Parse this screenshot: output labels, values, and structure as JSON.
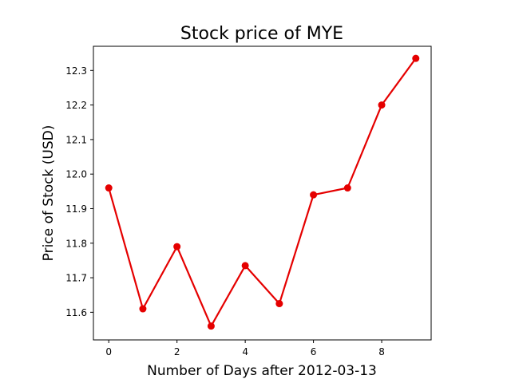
{
  "chart_data": {
    "type": "line",
    "title": "Stock price of MYE",
    "xlabel": "Number of Days after 2012-03-13",
    "ylabel": "Price of Stock (USD)",
    "xlim": [
      -0.45,
      9.45
    ],
    "ylim": [
      11.52,
      12.37
    ],
    "xticks": [
      0,
      2,
      4,
      6,
      8
    ],
    "yticks": [
      11.6,
      11.7,
      11.8,
      11.9,
      12.0,
      12.1,
      12.2,
      12.3
    ],
    "ytick_labels": [
      "11.6",
      "11.7",
      "11.8",
      "11.9",
      "12.0",
      "12.1",
      "12.2",
      "12.3"
    ],
    "grid": false,
    "series": [
      {
        "color": "#e50000",
        "marker": "circle",
        "x": [
          0,
          1,
          2,
          3,
          4,
          5,
          6,
          7,
          8,
          9
        ],
        "y": [
          11.96,
          11.61,
          11.79,
          11.56,
          11.735,
          11.625,
          11.94,
          11.96,
          12.2,
          12.335
        ]
      }
    ]
  }
}
